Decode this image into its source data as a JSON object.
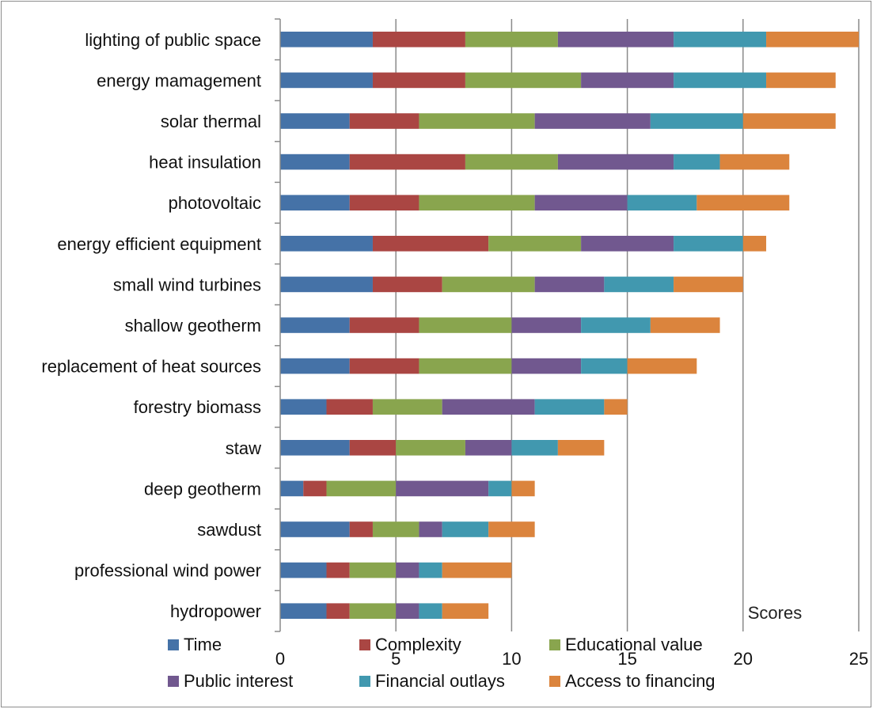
{
  "chart_data": {
    "type": "bar",
    "orientation": "horizontal",
    "stacked": true,
    "title": "",
    "xlabel": "Scores",
    "ylabel": "",
    "xlim": [
      0,
      25
    ],
    "x_ticks": [
      0,
      5,
      10,
      15,
      20,
      25
    ],
    "grid": true,
    "legend_position": "bottom",
    "categories": [
      "lighting of public space",
      "energy mamagement",
      "solar thermal",
      "heat insulation",
      "photovoltaic",
      "energy efficient equipment",
      "small wind turbines",
      "shallow geotherm",
      "replacement of heat sources",
      "forestry biomass",
      "staw",
      "deep geotherm",
      "sawdust",
      "professional wind power",
      "hydropower"
    ],
    "series": [
      {
        "name": "Time",
        "color": "#4572a7",
        "values": [
          4,
          4,
          3,
          3,
          3,
          4,
          4,
          3,
          3,
          2,
          3,
          1,
          3,
          2,
          2
        ]
      },
      {
        "name": "Complexity",
        "color": "#aa4643",
        "values": [
          4,
          4,
          3,
          5,
          3,
          5,
          3,
          3,
          3,
          2,
          2,
          1,
          1,
          1,
          1
        ]
      },
      {
        "name": "Educational value",
        "color": "#89a54e",
        "values": [
          4,
          5,
          5,
          4,
          5,
          4,
          4,
          4,
          4,
          3,
          3,
          3,
          2,
          2,
          2
        ]
      },
      {
        "name": "Public interest",
        "color": "#71588f",
        "values": [
          5,
          4,
          5,
          5,
          4,
          4,
          3,
          3,
          3,
          4,
          2,
          4,
          1,
          1,
          1
        ]
      },
      {
        "name": "Financial outlays",
        "color": "#4198af",
        "values": [
          4,
          4,
          4,
          2,
          3,
          3,
          3,
          3,
          2,
          3,
          2,
          1,
          2,
          1,
          1
        ]
      },
      {
        "name": "Access to financing",
        "color": "#db843d",
        "values": [
          4,
          3,
          4,
          3,
          4,
          1,
          3,
          3,
          3,
          1,
          2,
          1,
          2,
          3,
          2
        ]
      }
    ]
  }
}
